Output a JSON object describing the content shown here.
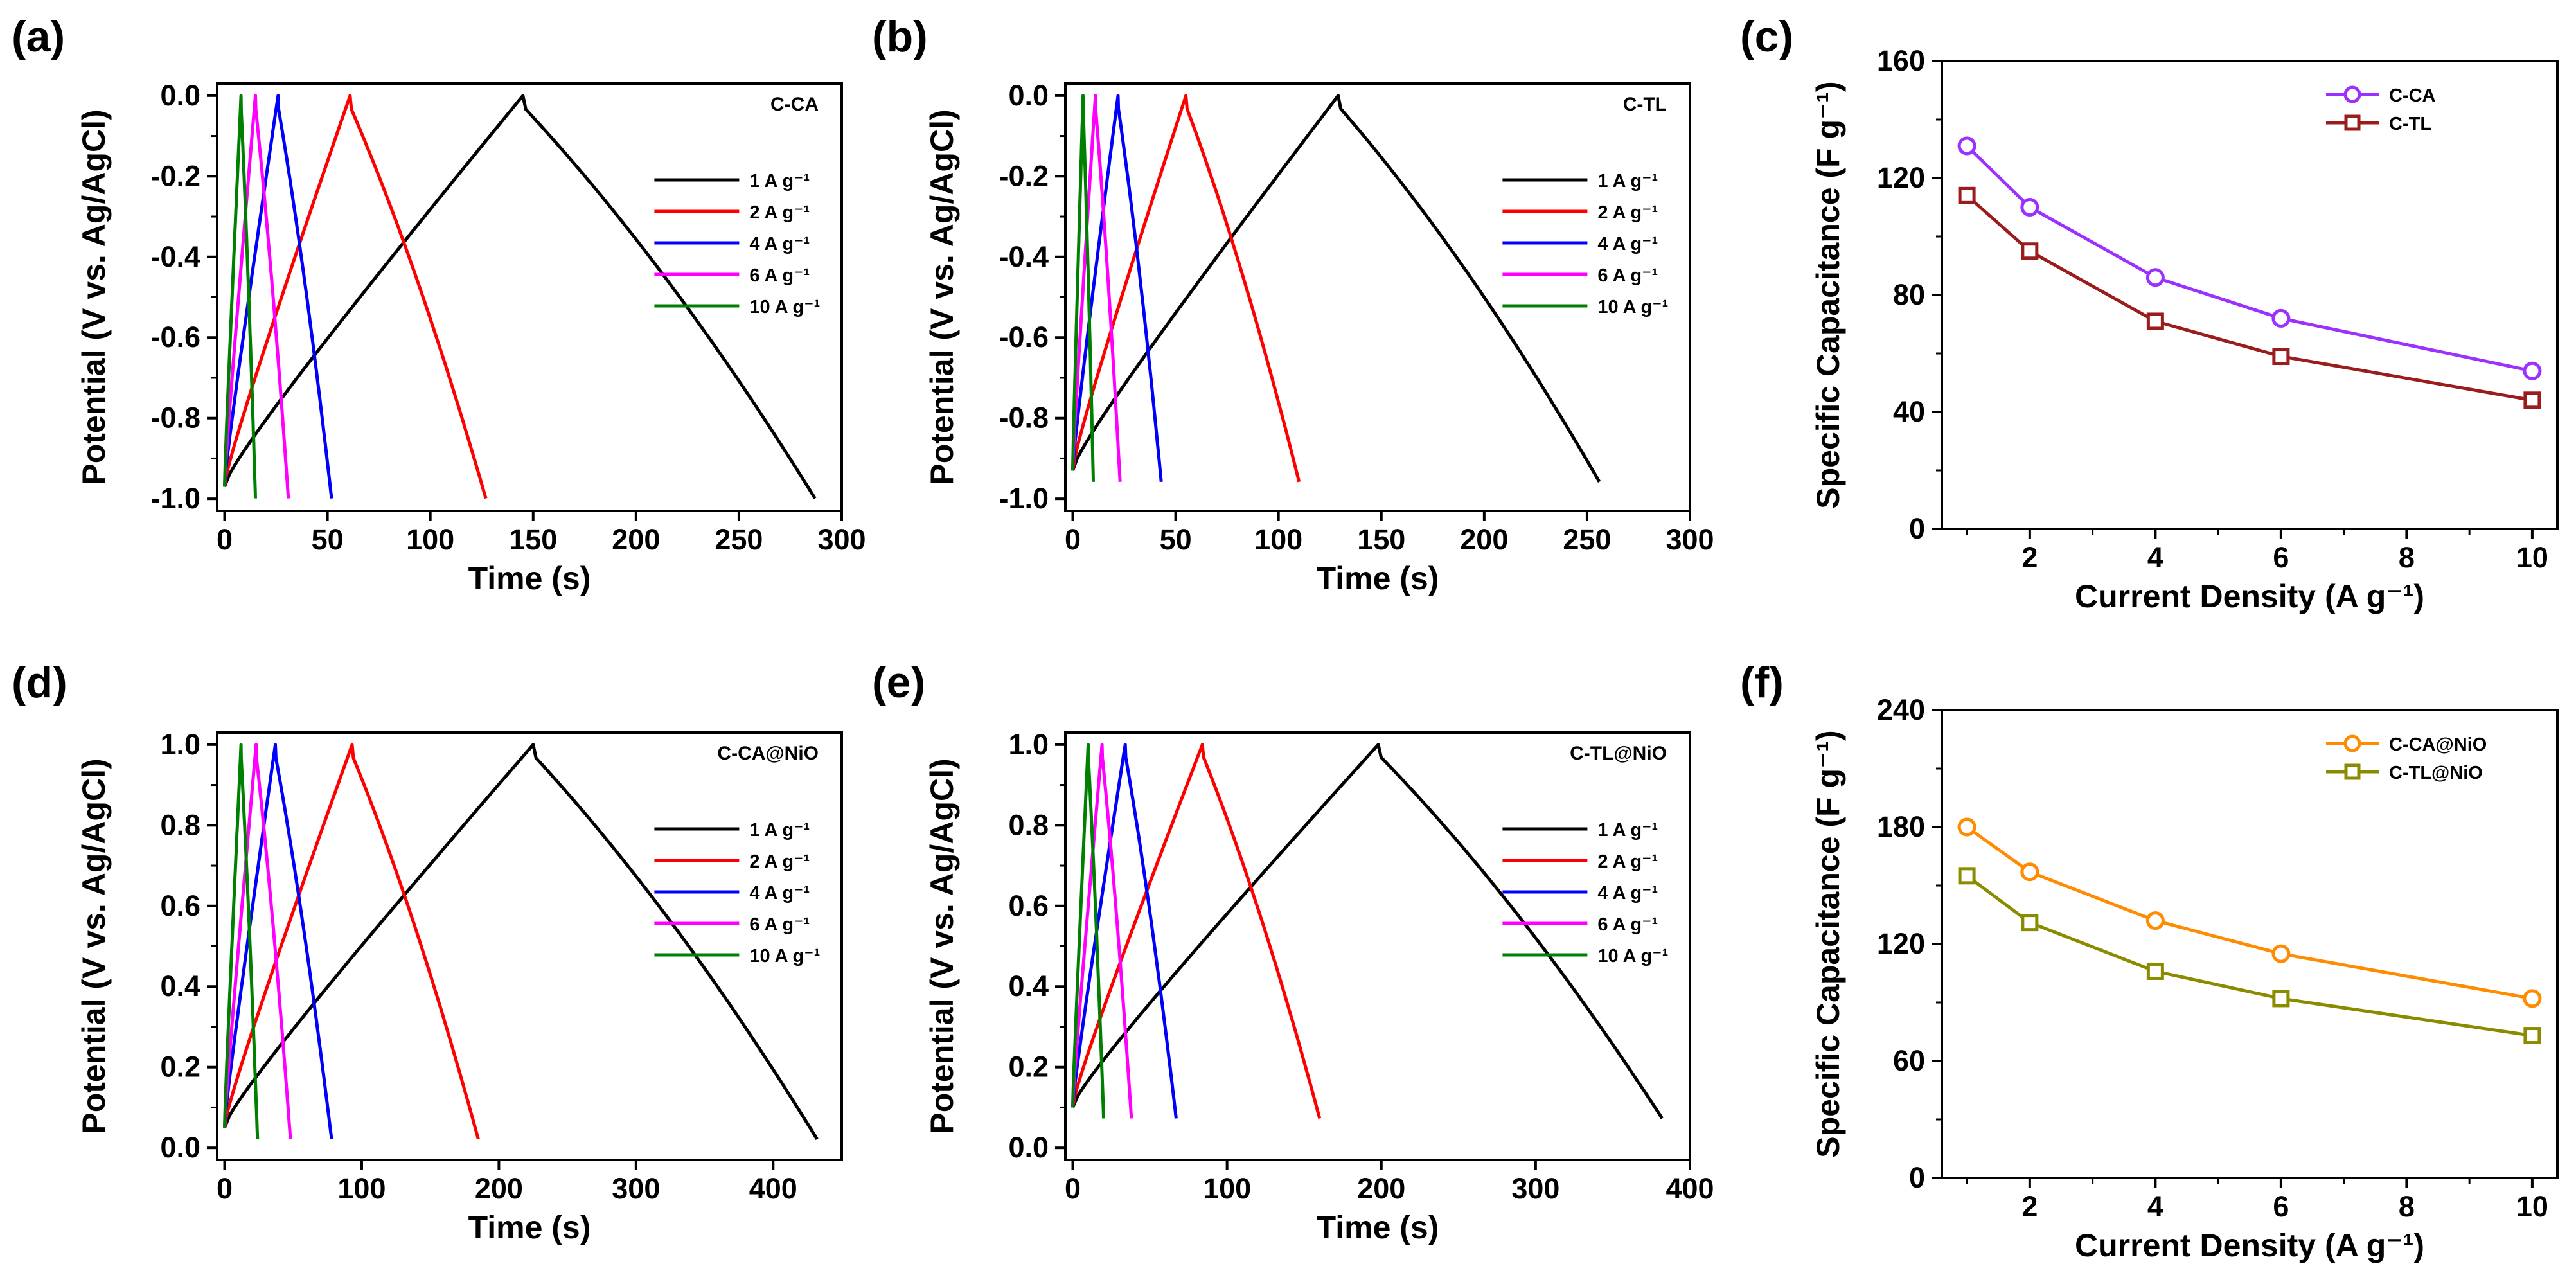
{
  "panels": [
    {
      "label": "(a)"
    },
    {
      "label": "(b)"
    },
    {
      "label": "(c)"
    },
    {
      "label": "(d)"
    },
    {
      "label": "(e)"
    },
    {
      "label": "(f)"
    }
  ],
  "chart_data": [
    {
      "type": "line",
      "panel": "(a)",
      "sample_label": "C-CA",
      "xlabel": "Time (s)",
      "ylabel": "Potential (V vs. Ag/AgCl)",
      "xlim": [
        0,
        300
      ],
      "ylim": [
        -1.0,
        0.0
      ],
      "xticks": [
        "0",
        "50",
        "100",
        "150",
        "200",
        "250",
        "300"
      ],
      "yticks": [
        "-1.0",
        "-0.8",
        "-0.6",
        "-0.4",
        "-0.2",
        "0.0"
      ],
      "legend_position": "right-middle",
      "series": [
        {
          "name": "1 A g⁻¹",
          "color": "#000000",
          "v_start": -0.97,
          "v_end": 0.0,
          "t_peak": 145,
          "t_end": 287
        },
        {
          "name": "2 A g⁻¹",
          "color": "#ff0000",
          "v_start": -0.97,
          "v_end": 0.0,
          "t_peak": 61,
          "t_end": 127
        },
        {
          "name": "4 A g⁻¹",
          "color": "#0000ff",
          "v_start": -0.97,
          "v_end": 0.0,
          "t_peak": 26,
          "t_end": 52
        },
        {
          "name": "6 A g⁻¹",
          "color": "#ff00ff",
          "v_start": -0.97,
          "v_end": 0.0,
          "t_peak": 15,
          "t_end": 31
        },
        {
          "name": "10 A g⁻¹",
          "color": "#008000",
          "v_start": -0.97,
          "v_end": 0.0,
          "t_peak": 8,
          "t_end": 15
        }
      ]
    },
    {
      "type": "line",
      "panel": "(b)",
      "sample_label": "C-TL",
      "xlabel": "Time (s)",
      "ylabel": "Potential (V vs. Ag/AgCl)",
      "xlim": [
        0,
        300
      ],
      "ylim": [
        -1.0,
        0.0
      ],
      "xticks": [
        "0",
        "50",
        "100",
        "150",
        "200",
        "250",
        "300"
      ],
      "yticks": [
        "-1.0",
        "-0.8",
        "-0.6",
        "-0.4",
        "-0.2",
        "0.0"
      ],
      "legend_position": "right-middle",
      "series": [
        {
          "name": "1 A g⁻¹",
          "color": "#000000",
          "v_start": -0.93,
          "v_end": 0.0,
          "t_peak": 129,
          "t_end": 256
        },
        {
          "name": "2 A g⁻¹",
          "color": "#ff0000",
          "v_start": -0.93,
          "v_end": 0.0,
          "t_peak": 55,
          "t_end": 110
        },
        {
          "name": "4 A g⁻¹",
          "color": "#0000ff",
          "v_start": -0.93,
          "v_end": 0.0,
          "t_peak": 22,
          "t_end": 43
        },
        {
          "name": "6 A g⁻¹",
          "color": "#ff00ff",
          "v_start": -0.93,
          "v_end": 0.0,
          "t_peak": 11,
          "t_end": 23
        },
        {
          "name": "10 A g⁻¹",
          "color": "#008000",
          "v_start": -0.93,
          "v_end": 0.0,
          "t_peak": 5,
          "t_end": 10
        }
      ]
    },
    {
      "type": "line",
      "panel": "(c)",
      "xlabel": "Current Density (A g⁻¹)",
      "ylabel": "Specific Capacitance (F g⁻¹)",
      "xlim": [
        0.6,
        10.4
      ],
      "ylim": [
        0,
        160
      ],
      "xticks": [
        "2",
        "4",
        "6",
        "8",
        "10"
      ],
      "yticks": [
        "0",
        "40",
        "80",
        "120",
        "160"
      ],
      "legend_position": "top-right",
      "categories": [
        1,
        2,
        4,
        6,
        8,
        10
      ],
      "series": [
        {
          "name": "C-CA",
          "color": "#9b30ff",
          "marker": "circle",
          "x": [
            1,
            2,
            4,
            6,
            10
          ],
          "values": [
            131,
            110,
            86,
            72,
            54
          ]
        },
        {
          "name": "C-TL",
          "color": "#9b1c1c",
          "marker": "square",
          "x": [
            1,
            2,
            4,
            6,
            10
          ],
          "values": [
            114,
            95,
            71,
            59,
            44
          ]
        }
      ]
    },
    {
      "type": "line",
      "panel": "(d)",
      "sample_label": "C-CA@NiO",
      "xlabel": "Time (s)",
      "ylabel": "Potential (V vs. Ag/AgCl)",
      "xlim": [
        0,
        450
      ],
      "ylim": [
        0.0,
        1.0
      ],
      "xticks": [
        "0",
        "100",
        "200",
        "300",
        "400"
      ],
      "yticks": [
        "0.0",
        "0.2",
        "0.4",
        "0.6",
        "0.8",
        "1.0"
      ],
      "legend_position": "right-middle",
      "series": [
        {
          "name": "1 A g⁻¹",
          "color": "#000000",
          "v_start": 0.05,
          "v_end": 1.0,
          "t_peak": 225,
          "t_end": 432
        },
        {
          "name": "2 A g⁻¹",
          "color": "#ff0000",
          "v_start": 0.05,
          "v_end": 1.0,
          "t_peak": 93,
          "t_end": 185
        },
        {
          "name": "4 A g⁻¹",
          "color": "#0000ff",
          "v_start": 0.05,
          "v_end": 1.0,
          "t_peak": 37,
          "t_end": 78
        },
        {
          "name": "6 A g⁻¹",
          "color": "#ff00ff",
          "v_start": 0.05,
          "v_end": 1.0,
          "t_peak": 23,
          "t_end": 48
        },
        {
          "name": "10 A g⁻¹",
          "color": "#008000",
          "v_start": 0.05,
          "v_end": 1.0,
          "t_peak": 12,
          "t_end": 24
        }
      ]
    },
    {
      "type": "line",
      "panel": "(e)",
      "sample_label": "C-TL@NiO",
      "xlabel": "Time (s)",
      "ylabel": "Potential (V vs. Ag/AgCl)",
      "xlim": [
        0,
        400
      ],
      "ylim": [
        0.0,
        1.0
      ],
      "xticks": [
        "0",
        "100",
        "200",
        "300",
        "400"
      ],
      "yticks": [
        "0.0",
        "0.2",
        "0.4",
        "0.6",
        "0.8",
        "1.0"
      ],
      "legend_position": "right-middle",
      "series": [
        {
          "name": "1 A g⁻¹",
          "color": "#000000",
          "v_start": 0.1,
          "v_end": 1.0,
          "t_peak": 198,
          "t_end": 382
        },
        {
          "name": "2 A g⁻¹",
          "color": "#ff0000",
          "v_start": 0.1,
          "v_end": 1.0,
          "t_peak": 84,
          "t_end": 160
        },
        {
          "name": "4 A g⁻¹",
          "color": "#0000ff",
          "v_start": 0.1,
          "v_end": 1.0,
          "t_peak": 34,
          "t_end": 67
        },
        {
          "name": "6 A g⁻¹",
          "color": "#ff00ff",
          "v_start": 0.1,
          "v_end": 1.0,
          "t_peak": 19,
          "t_end": 38
        },
        {
          "name": "10 A g⁻¹",
          "color": "#008000",
          "v_start": 0.1,
          "v_end": 1.0,
          "t_peak": 10,
          "t_end": 20
        }
      ]
    },
    {
      "type": "line",
      "panel": "(f)",
      "xlabel": "Current Density (A g⁻¹)",
      "ylabel": "Specific Capacitance (F g⁻¹)",
      "xlim": [
        0.6,
        10.4
      ],
      "ylim": [
        0,
        240
      ],
      "xticks": [
        "2",
        "4",
        "6",
        "8",
        "10"
      ],
      "yticks": [
        "0",
        "60",
        "120",
        "180",
        "240"
      ],
      "legend_position": "top-right",
      "categories": [
        1,
        2,
        4,
        6,
        8,
        10
      ],
      "series": [
        {
          "name": "C-CA@NiO",
          "color": "#ff8c00",
          "marker": "circle",
          "x": [
            1,
            2,
            4,
            6,
            10
          ],
          "values": [
            180,
            157,
            132,
            115,
            92
          ]
        },
        {
          "name": "C-TL@NiO",
          "color": "#8b8b00",
          "marker": "square",
          "x": [
            1,
            2,
            4,
            6,
            10
          ],
          "values": [
            155,
            131,
            106,
            92,
            73
          ]
        }
      ]
    }
  ]
}
